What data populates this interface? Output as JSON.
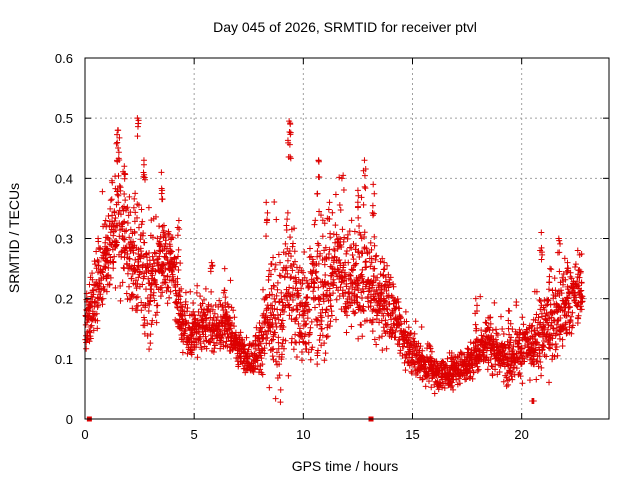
{
  "chart_data": {
    "type": "scatter",
    "title": "Day 045 of 2026, SRMTID for receiver ptvl",
    "xlabel": "GPS time / hours",
    "ylabel": "SRMTID / TECUs",
    "xlim": [
      0,
      24
    ],
    "ylim": [
      0,
      0.6
    ],
    "x_ticks": [
      0,
      5,
      10,
      15,
      20
    ],
    "x_tick_labels": [
      "0",
      "5",
      "10",
      "15",
      "20"
    ],
    "y_ticks": [
      0,
      0.1,
      0.2,
      0.3,
      0.4,
      0.5,
      0.6
    ],
    "y_tick_labels": [
      "0",
      "0.1",
      "0.2",
      "0.3",
      "0.4",
      "0.5",
      "0.6"
    ],
    "grid": true,
    "marker": "+",
    "color": "#dd0000",
    "sampling_note": "approximate trend profile read from the dense cloud; individual points generated from it",
    "trend": {
      "x": [
        0.0,
        0.5,
        1.0,
        1.5,
        2.0,
        2.5,
        3.0,
        3.5,
        4.0,
        4.5,
        5.0,
        5.5,
        6.0,
        6.5,
        7.0,
        7.5,
        8.0,
        8.5,
        9.0,
        9.3,
        9.6,
        10.0,
        10.5,
        11.0,
        11.5,
        12.0,
        12.5,
        13.0,
        13.5,
        14.0,
        14.5,
        15.0,
        15.5,
        16.0,
        16.5,
        17.0,
        17.5,
        18.0,
        18.5,
        19.0,
        19.5,
        20.0,
        20.5,
        21.0,
        21.5,
        22.0,
        22.5,
        22.8
      ],
      "y": [
        0.16,
        0.2,
        0.27,
        0.33,
        0.28,
        0.24,
        0.23,
        0.26,
        0.25,
        0.15,
        0.14,
        0.16,
        0.15,
        0.16,
        0.12,
        0.1,
        0.12,
        0.18,
        0.14,
        0.25,
        0.2,
        0.16,
        0.22,
        0.2,
        0.26,
        0.24,
        0.22,
        0.23,
        0.2,
        0.18,
        0.13,
        0.11,
        0.09,
        0.08,
        0.075,
        0.08,
        0.09,
        0.11,
        0.13,
        0.11,
        0.1,
        0.12,
        0.12,
        0.14,
        0.16,
        0.18,
        0.21,
        0.22
      ],
      "spread": [
        0.03,
        0.04,
        0.05,
        0.07,
        0.06,
        0.08,
        0.07,
        0.05,
        0.04,
        0.03,
        0.03,
        0.03,
        0.03,
        0.03,
        0.02,
        0.02,
        0.03,
        0.07,
        0.07,
        0.08,
        0.06,
        0.05,
        0.07,
        0.07,
        0.05,
        0.06,
        0.06,
        0.06,
        0.05,
        0.04,
        0.03,
        0.025,
        0.02,
        0.02,
        0.02,
        0.02,
        0.02,
        0.025,
        0.03,
        0.03,
        0.03,
        0.03,
        0.03,
        0.04,
        0.04,
        0.04,
        0.03,
        0.03
      ]
    },
    "peaks": [
      {
        "x": 0.2,
        "y": 0.19
      },
      {
        "x": 0.6,
        "y": 0.3
      },
      {
        "x": 0.95,
        "y": 0.33
      },
      {
        "x": 1.5,
        "y": 0.48
      },
      {
        "x": 1.8,
        "y": 0.42
      },
      {
        "x": 2.4,
        "y": 0.5
      },
      {
        "x": 2.7,
        "y": 0.43
      },
      {
        "x": 3.5,
        "y": 0.41
      },
      {
        "x": 4.3,
        "y": 0.33
      },
      {
        "x": 5.8,
        "y": 0.26
      },
      {
        "x": 6.4,
        "y": 0.25
      },
      {
        "x": 8.3,
        "y": 0.36
      },
      {
        "x": 9.35,
        "y": 0.495
      },
      {
        "x": 9.4,
        "y": 0.49
      },
      {
        "x": 10.7,
        "y": 0.43
      },
      {
        "x": 11.2,
        "y": 0.36
      },
      {
        "x": 12.5,
        "y": 0.38
      },
      {
        "x": 12.8,
        "y": 0.43
      },
      {
        "x": 13.2,
        "y": 0.39
      },
      {
        "x": 13.7,
        "y": 0.26
      },
      {
        "x": 17.9,
        "y": 0.2
      },
      {
        "x": 19.4,
        "y": 0.18
      },
      {
        "x": 20.5,
        "y": 0.03
      },
      {
        "x": 20.9,
        "y": 0.31
      },
      {
        "x": 21.3,
        "y": 0.25
      },
      {
        "x": 21.7,
        "y": 0.3
      },
      {
        "x": 22.1,
        "y": 0.26
      }
    ],
    "zero_points": [
      {
        "x": 0.2,
        "y": 0.0
      },
      {
        "x": 13.1,
        "y": 0.0
      }
    ]
  }
}
